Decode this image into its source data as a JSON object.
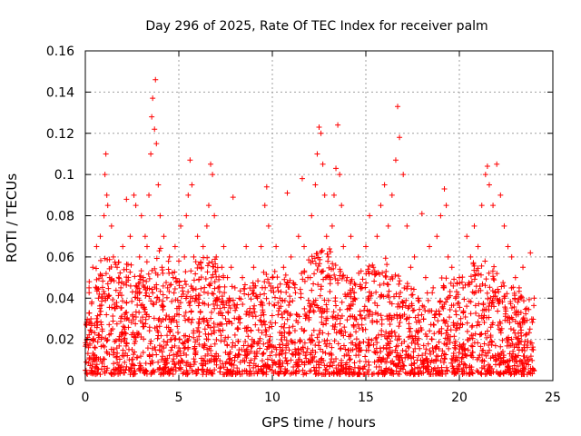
{
  "chart_data": {
    "type": "scatter",
    "title": "Day 296 of 2025, Rate Of TEC Index for receiver palm",
    "xlabel": "GPS time / hours",
    "ylabel": "ROTI / TECUs",
    "xlim": [
      0,
      25
    ],
    "ylim": [
      0,
      0.16
    ],
    "xticks": [
      "0",
      "5",
      "10",
      "15",
      "20",
      "25"
    ],
    "xtick_values": [
      0,
      5,
      10,
      15,
      20,
      25
    ],
    "yticks": [
      "0",
      "0.02",
      "0.04",
      "0.06",
      "0.08",
      "0.1",
      "0.12",
      "0.14",
      "0.16"
    ],
    "ytick_values": [
      0,
      0.02,
      0.04,
      0.06,
      0.08,
      0.1,
      0.12,
      0.14,
      0.16
    ],
    "grid": true,
    "marker": "plus",
    "color": "#ff0000",
    "series": [
      {
        "points": [
          [
            0.0,
            0.005
          ],
          [
            0.1,
            0.02
          ],
          [
            0.2,
            0.045
          ],
          [
            0.3,
            0.03
          ],
          [
            0.4,
            0.055
          ],
          [
            0.5,
            0.012
          ],
          [
            0.6,
            0.065
          ],
          [
            0.7,
            0.04
          ],
          [
            0.8,
            0.07
          ],
          [
            0.9,
            0.025
          ],
          [
            1.0,
            0.08
          ],
          [
            1.05,
            0.1
          ],
          [
            1.1,
            0.11
          ],
          [
            1.15,
            0.09
          ],
          [
            1.2,
            0.085
          ],
          [
            1.3,
            0.05
          ],
          [
            1.4,
            0.075
          ],
          [
            1.5,
            0.06
          ],
          [
            1.6,
            0.035
          ],
          [
            1.7,
            0.055
          ],
          [
            1.8,
            0.02
          ],
          [
            1.9,
            0.045
          ],
          [
            2.0,
            0.065
          ],
          [
            2.1,
            0.03
          ],
          [
            2.2,
            0.088
          ],
          [
            2.3,
            0.05
          ],
          [
            2.4,
            0.07
          ],
          [
            2.5,
            0.015
          ],
          [
            2.6,
            0.09
          ],
          [
            2.7,
            0.085
          ],
          [
            2.8,
            0.04
          ],
          [
            2.9,
            0.06
          ],
          [
            3.0,
            0.08
          ],
          [
            3.1,
            0.05
          ],
          [
            3.2,
            0.07
          ],
          [
            3.3,
            0.065
          ],
          [
            3.4,
            0.09
          ],
          [
            3.5,
            0.11
          ],
          [
            3.55,
            0.128
          ],
          [
            3.6,
            0.137
          ],
          [
            3.7,
            0.122
          ],
          [
            3.75,
            0.146
          ],
          [
            3.8,
            0.115
          ],
          [
            3.9,
            0.095
          ],
          [
            4.0,
            0.08
          ],
          [
            4.1,
            0.055
          ],
          [
            4.2,
            0.07
          ],
          [
            4.3,
            0.03
          ],
          [
            4.4,
            0.045
          ],
          [
            4.5,
            0.06
          ],
          [
            4.6,
            0.02
          ],
          [
            4.7,
            0.05
          ],
          [
            4.8,
            0.065
          ],
          [
            4.9,
            0.035
          ],
          [
            5.0,
            0.058
          ],
          [
            5.1,
            0.075
          ],
          [
            5.2,
            0.045
          ],
          [
            5.3,
            0.06
          ],
          [
            5.4,
            0.08
          ],
          [
            5.5,
            0.09
          ],
          [
            5.6,
            0.107
          ],
          [
            5.7,
            0.095
          ],
          [
            5.8,
            0.06
          ],
          [
            5.9,
            0.04
          ],
          [
            6.0,
            0.07
          ],
          [
            6.1,
            0.03
          ],
          [
            6.2,
            0.055
          ],
          [
            6.3,
            0.065
          ],
          [
            6.4,
            0.025
          ],
          [
            6.5,
            0.075
          ],
          [
            6.6,
            0.085
          ],
          [
            6.7,
            0.105
          ],
          [
            6.8,
            0.1
          ],
          [
            6.9,
            0.08
          ],
          [
            7.0,
            0.06
          ],
          [
            7.1,
            0.045
          ],
          [
            7.2,
            0.035
          ],
          [
            7.3,
            0.055
          ],
          [
            7.4,
            0.065
          ],
          [
            7.5,
            0.03
          ],
          [
            7.6,
            0.05
          ],
          [
            7.7,
            0.04
          ],
          [
            7.8,
            0.055
          ],
          [
            7.9,
            0.089
          ],
          [
            8.0,
            0.045
          ],
          [
            8.2,
            0.03
          ],
          [
            8.4,
            0.05
          ],
          [
            8.6,
            0.065
          ],
          [
            8.8,
            0.035
          ],
          [
            9.0,
            0.055
          ],
          [
            9.2,
            0.04
          ],
          [
            9.4,
            0.065
          ],
          [
            9.6,
            0.085
          ],
          [
            9.7,
            0.094
          ],
          [
            9.8,
            0.075
          ],
          [
            10.0,
            0.05
          ],
          [
            10.2,
            0.065
          ],
          [
            10.4,
            0.04
          ],
          [
            10.6,
            0.055
          ],
          [
            10.8,
            0.091
          ],
          [
            11.0,
            0.06
          ],
          [
            11.2,
            0.045
          ],
          [
            11.4,
            0.07
          ],
          [
            11.6,
            0.098
          ],
          [
            11.7,
            0.065
          ],
          [
            11.9,
            0.05
          ],
          [
            12.1,
            0.08
          ],
          [
            12.3,
            0.095
          ],
          [
            12.4,
            0.11
          ],
          [
            12.5,
            0.123
          ],
          [
            12.6,
            0.12
          ],
          [
            12.7,
            0.105
          ],
          [
            12.8,
            0.09
          ],
          [
            12.9,
            0.07
          ],
          [
            13.0,
            0.06
          ],
          [
            13.1,
            0.05
          ],
          [
            13.2,
            0.075
          ],
          [
            13.3,
            0.09
          ],
          [
            13.4,
            0.103
          ],
          [
            13.5,
            0.124
          ],
          [
            13.6,
            0.1
          ],
          [
            13.7,
            0.085
          ],
          [
            13.8,
            0.065
          ],
          [
            14.0,
            0.05
          ],
          [
            14.2,
            0.07
          ],
          [
            14.4,
            0.04
          ],
          [
            14.6,
            0.06
          ],
          [
            14.8,
            0.045
          ],
          [
            15.0,
            0.065
          ],
          [
            15.2,
            0.08
          ],
          [
            15.4,
            0.055
          ],
          [
            15.6,
            0.07
          ],
          [
            15.8,
            0.085
          ],
          [
            16.0,
            0.095
          ],
          [
            16.2,
            0.075
          ],
          [
            16.4,
            0.09
          ],
          [
            16.6,
            0.107
          ],
          [
            16.7,
            0.133
          ],
          [
            16.8,
            0.118
          ],
          [
            17.0,
            0.1
          ],
          [
            17.2,
            0.075
          ],
          [
            17.4,
            0.055
          ],
          [
            17.6,
            0.06
          ],
          [
            17.8,
            0.04
          ],
          [
            18.0,
            0.081
          ],
          [
            18.2,
            0.05
          ],
          [
            18.4,
            0.065
          ],
          [
            18.6,
            0.045
          ],
          [
            18.8,
            0.07
          ],
          [
            19.0,
            0.08
          ],
          [
            19.2,
            0.093
          ],
          [
            19.3,
            0.085
          ],
          [
            19.4,
            0.06
          ],
          [
            19.6,
            0.055
          ],
          [
            19.8,
            0.04
          ],
          [
            20.0,
            0.05
          ],
          [
            20.2,
            0.045
          ],
          [
            20.4,
            0.07
          ],
          [
            20.6,
            0.06
          ],
          [
            20.8,
            0.075
          ],
          [
            21.0,
            0.065
          ],
          [
            21.2,
            0.085
          ],
          [
            21.4,
            0.1
          ],
          [
            21.5,
            0.104
          ],
          [
            21.6,
            0.095
          ],
          [
            21.8,
            0.085
          ],
          [
            22.0,
            0.105
          ],
          [
            22.2,
            0.09
          ],
          [
            22.4,
            0.075
          ],
          [
            22.6,
            0.065
          ],
          [
            22.8,
            0.06
          ],
          [
            23.0,
            0.05
          ],
          [
            23.2,
            0.045
          ],
          [
            23.4,
            0.055
          ],
          [
            23.6,
            0.035
          ],
          [
            23.8,
            0.062
          ],
          [
            24.0,
            0.04
          ]
        ]
      }
    ],
    "noise_band": {
      "description_values": [
        0.003,
        0.06
      ],
      "dense_ceiling_hours": [
        0,
        1,
        2,
        3,
        4,
        5,
        6,
        7,
        8,
        9,
        10,
        11,
        12,
        13,
        14,
        15,
        16,
        17,
        18,
        19,
        20,
        21,
        22,
        23,
        24
      ],
      "dense_ceiling_values": [
        0.05,
        0.06,
        0.06,
        0.055,
        0.065,
        0.05,
        0.06,
        0.06,
        0.045,
        0.05,
        0.055,
        0.05,
        0.06,
        0.065,
        0.05,
        0.055,
        0.06,
        0.05,
        0.04,
        0.05,
        0.05,
        0.06,
        0.055,
        0.045,
        0.04
      ]
    }
  }
}
